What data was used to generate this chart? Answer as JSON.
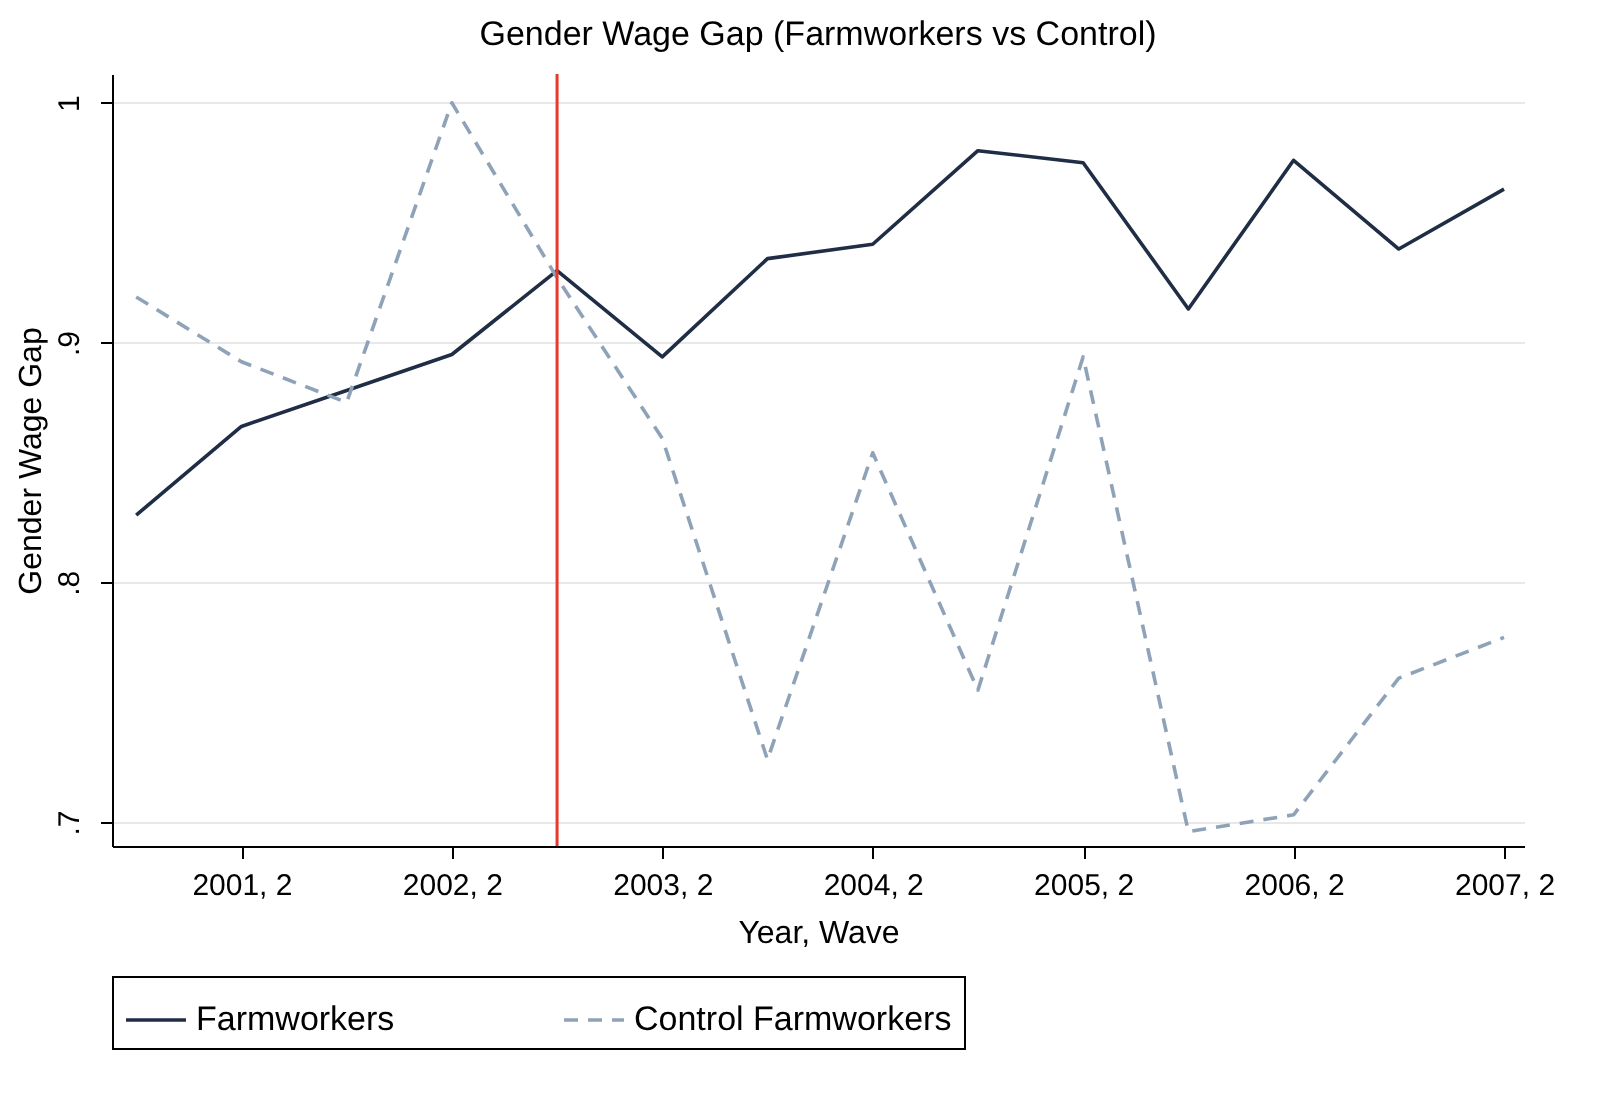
{
  "chart_data": {
    "type": "line",
    "title": "Gender Wage Gap (Farmworkers vs Control)",
    "xlabel": "Year, Wave",
    "ylabel": "Gender Wage Gap",
    "categories": [
      null,
      "2001, 2",
      null,
      "2002, 2",
      null,
      "2003, 2",
      null,
      "2004, 2",
      null,
      "2005, 2",
      null,
      "2006, 2",
      null,
      "2007, 2"
    ],
    "ylim": [
      0.69,
      1.012
    ],
    "yticks": [
      {
        "value": 0.7,
        "label": ".7"
      },
      {
        "value": 0.8,
        "label": ".8"
      },
      {
        "value": 0.9,
        "label": ".9"
      },
      {
        "value": 1,
        "label": "1"
      }
    ],
    "series": [
      {
        "name": "Farmworkers",
        "color": "#1f2d45",
        "line_style": "solid",
        "values": [
          0.828,
          0.865,
          0.88,
          0.895,
          0.93,
          0.894,
          0.935,
          0.941,
          0.98,
          0.975,
          0.914,
          0.976,
          0.939,
          0.964
        ]
      },
      {
        "name": "Control Farmworkers",
        "color": "#8fa3b8",
        "line_style": "dashed",
        "values": [
          0.919,
          0.892,
          0.875,
          1.0,
          0.927,
          0.86,
          0.726,
          0.854,
          0.755,
          0.894,
          0.696,
          0.703,
          0.76,
          0.777
        ]
      }
    ],
    "grid": "y",
    "legend": "bottom",
    "marker": "none"
  }
}
